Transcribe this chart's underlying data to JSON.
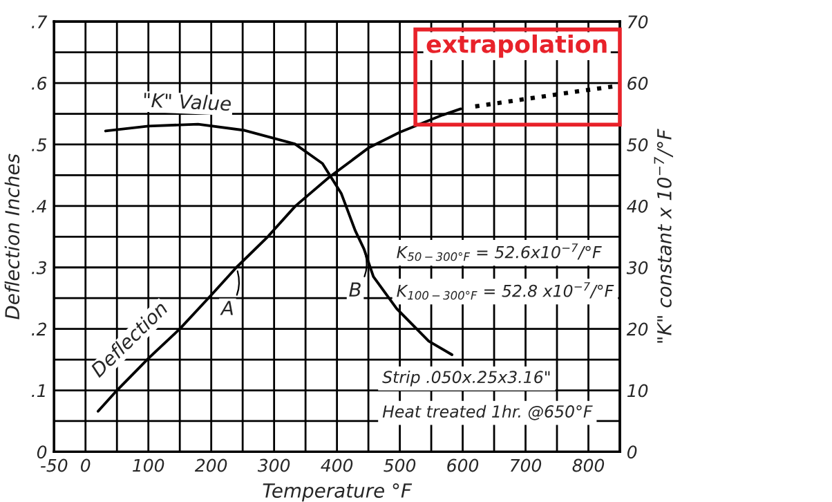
{
  "chart_data": {
    "type": "line",
    "xlabel": "Temperature °F",
    "ylabel": "Deflection Inches",
    "y2label": "\"K\" constant x 10$^{−7}$/°F",
    "xlim": [
      -50,
      850
    ],
    "xticks": [
      -50,
      0,
      {
        "value": 50,
        "label": null
      },
      100,
      {
        "value": 150,
        "label": null
      },
      200,
      {
        "value": 250,
        "label": null
      },
      300,
      {
        "value": 350,
        "label": null
      },
      400,
      {
        "value": 450,
        "label": null
      },
      500,
      {
        "value": 550,
        "label": null
      },
      600,
      {
        "value": 650,
        "label": null
      },
      700,
      {
        "value": 750,
        "label": null
      },
      800
    ],
    "ylim": [
      0,
      0.7
    ],
    "yticks": [
      0,
      {
        "value": 0.05,
        "label": null
      },
      {
        "value": 0.1,
        "label": ".1"
      },
      {
        "value": 0.15,
        "label": null
      },
      {
        "value": 0.2,
        "label": ".2"
      },
      {
        "value": 0.25,
        "label": null
      },
      {
        "value": 0.3,
        "label": ".3"
      },
      {
        "value": 0.35,
        "label": null
      },
      {
        "value": 0.4,
        "label": ".4"
      },
      {
        "value": 0.45,
        "label": null
      },
      {
        "value": 0.5,
        "label": ".5"
      },
      {
        "value": 0.55,
        "label": null
      },
      {
        "value": 0.6,
        "label": ".6"
      },
      {
        "value": 0.65,
        "label": null
      },
      {
        "value": 0.7,
        "label": ".7"
      }
    ],
    "y2lim": [
      0,
      70
    ],
    "y2ticks": [
      0,
      10,
      20,
      30,
      40,
      50,
      60,
      70
    ],
    "grid": true,
    "series": [
      {
        "name": "Deflection",
        "color": "#000000",
        "x": [
          20,
          50,
          100,
          150,
          200,
          240,
          290,
          334,
          388,
          451,
          500,
          568,
          597
        ],
        "values": [
          0.066,
          0.1,
          0.152,
          0.2,
          0.255,
          0.3,
          0.35,
          0.4,
          0.447,
          0.495,
          0.52,
          0.548,
          0.558
        ]
      },
      {
        "name": "\"K\" Value",
        "color": "#000000",
        "axis": "y2",
        "x": [
          32,
          100,
          179,
          253,
          333,
          377,
          407,
          429,
          443,
          458,
          495,
          546,
          583
        ],
        "values": [
          52.2,
          53.0,
          53.3,
          52.3,
          50.1,
          46.9,
          42.0,
          36.0,
          33.0,
          28.5,
          23.3,
          18.0,
          15.8
        ]
      },
      {
        "name": "extrapolation",
        "color": "#000000",
        "line_style": "dotted",
        "x": [
          620,
          700,
          780,
          850
        ],
        "values": [
          0.562,
          0.574,
          0.586,
          0.596
        ]
      }
    ],
    "annotations": [
      {
        "text": "A",
        "x": 240,
        "y": 0.3
      },
      {
        "text": "B",
        "x": 443,
        "y": 0.33
      },
      "K$_{50−300°F}$ = 52.6x10$^{−7}$/°F",
      "K$_{100−300°F}$ = 52.8 x10$^{−7}$/°F",
      "Strip .050x.25x3.16\"",
      "Heat treated 1hr. @650°F"
    ]
  }
}
